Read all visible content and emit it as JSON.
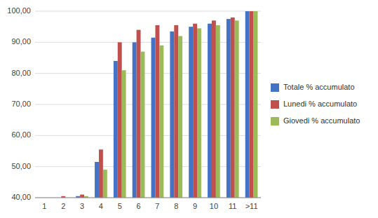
{
  "chart_data": {
    "type": "bar",
    "categories": [
      "1",
      "2",
      "3",
      "4",
      "5",
      "6",
      "7",
      "8",
      "9",
      "10",
      "11",
      ">11"
    ],
    "series": [
      {
        "name": "Totale % accumulato",
        "color": "#4472C4",
        "values": [
          40.0,
          40.0,
          40.5,
          51.5,
          84.0,
          90.0,
          91.5,
          93.5,
          95.0,
          96.0,
          97.5,
          100.0
        ]
      },
      {
        "name": "Lunedi % accumulato",
        "color": "#C0504D",
        "values": [
          40.0,
          40.5,
          41.0,
          55.5,
          90.0,
          94.0,
          95.5,
          95.5,
          96.0,
          97.0,
          98.0,
          100.0
        ]
      },
      {
        "name": "Giovedi % accumulato",
        "color": "#9BBB59",
        "values": [
          40.0,
          40.0,
          40.5,
          49.0,
          81.0,
          87.0,
          89.0,
          92.0,
          94.5,
          95.5,
          97.0,
          100.0
        ]
      }
    ],
    "ylim": [
      40.0,
      100.0
    ],
    "yticks": [
      {
        "value": 40.0,
        "label": "40,00"
      },
      {
        "value": 50.0,
        "label": "50,00"
      },
      {
        "value": 60.0,
        "label": "60,00"
      },
      {
        "value": 70.0,
        "label": "70,00"
      },
      {
        "value": 80.0,
        "label": "80,00"
      },
      {
        "value": 90.0,
        "label": "90,00"
      },
      {
        "value": 100.0,
        "label": "100,00"
      }
    ],
    "grid": true,
    "legend": "right"
  }
}
